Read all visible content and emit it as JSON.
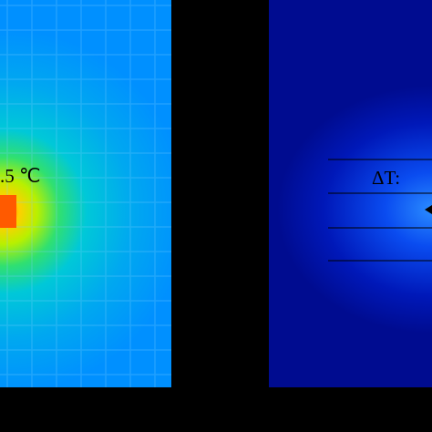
{
  "left_panel": {
    "label": ".5 ℃"
  },
  "right_panel": {
    "label": "ΔT:"
  }
}
